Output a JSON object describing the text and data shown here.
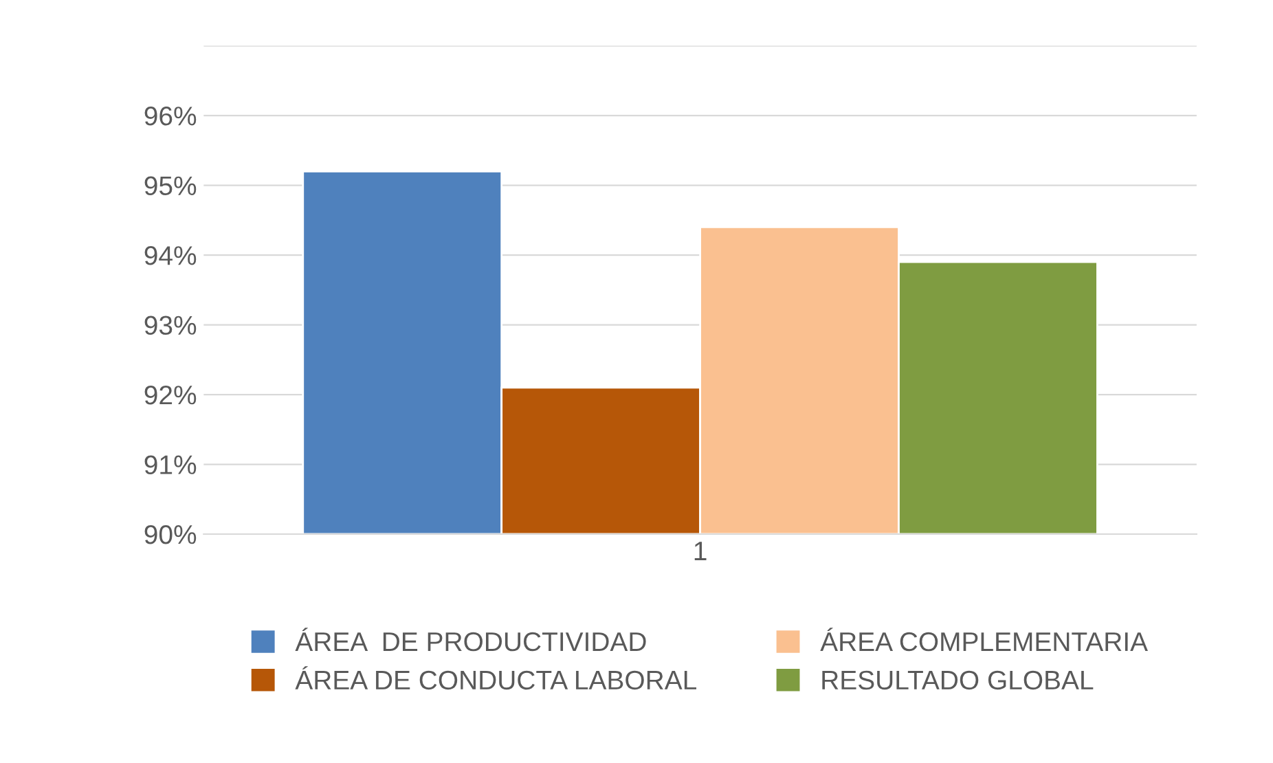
{
  "chart_data": {
    "type": "bar",
    "categories": [
      "1"
    ],
    "series": [
      {
        "name": "ÁREA  DE PRODUCTIVIDAD",
        "color": "#4f81bd",
        "values": [
          95.2
        ]
      },
      {
        "name": "ÁREA DE CONDUCTA LABORAL",
        "color": "#b65708",
        "values": [
          92.1
        ]
      },
      {
        "name": "ÁREA COMPLEMENTARIA",
        "color": "#fac090",
        "values": [
          94.4
        ]
      },
      {
        "name": "RESULTADO GLOBAL",
        "color": "#7f9c41",
        "values": [
          93.9
        ]
      }
    ],
    "ylim": [
      90,
      97
    ],
    "yticks": [
      {
        "value": 90,
        "label": "90%"
      },
      {
        "value": 91,
        "label": "91%"
      },
      {
        "value": 92,
        "label": "92%"
      },
      {
        "value": 93,
        "label": "93%"
      },
      {
        "value": 94,
        "label": "94%"
      },
      {
        "value": 95,
        "label": "95%"
      },
      {
        "value": 96,
        "label": "96%"
      },
      {
        "value": 97,
        "label": null
      }
    ],
    "grid": "y",
    "legend": "bottom"
  }
}
